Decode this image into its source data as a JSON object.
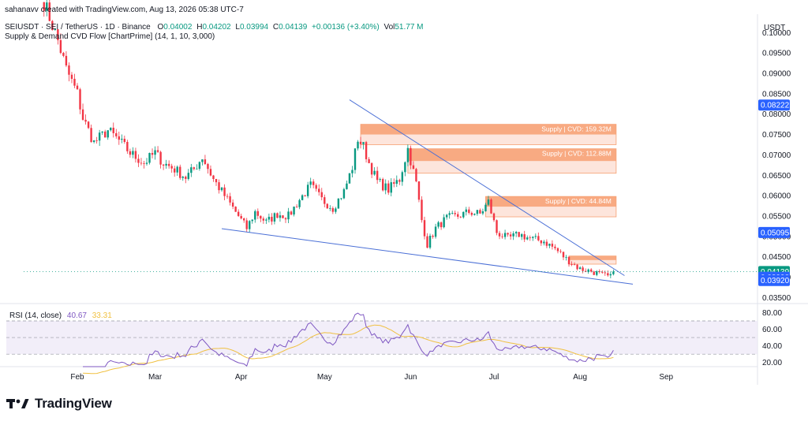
{
  "header": {
    "attribution": "sahanavv created with TradingView.com, Aug 13, 2026 05:38 UTC-7",
    "symbol_line": "SEIUSDT · SEI / TetherUS · 1D · Binance",
    "open_label": "O",
    "open": "0.04002",
    "high_label": "H",
    "high": "0.04202",
    "low_label": "L",
    "low": "0.03994",
    "close_label": "C",
    "close": "0.04139",
    "change": "+0.00136 (+3.40%)",
    "vol_label": "Vol",
    "vol": "51.77 M",
    "indicator": "Supply & Demand CVD Flow [ChartPrime] (14, 1, 10, 3,000)"
  },
  "colors": {
    "bull": "#089981",
    "bear": "#f23645",
    "zone": "#f7a072",
    "trendline": "#4a6fd6",
    "price_badge": "#2962ff",
    "rsi": "#7e57c2",
    "rsi_ma": "#f0c040"
  },
  "footer": {
    "brand": "TradingView"
  },
  "chart_data": [
    {
      "type": "candlestick",
      "title": "SEIUSDT · SEI / TetherUS · 1D · Binance",
      "currency": "USDT",
      "ylim": [
        0.0345,
        0.1045
      ],
      "y_ticks": [
        "0.10000",
        "0.09500",
        "0.09000",
        "0.08500",
        "0.08000",
        "0.07500",
        "0.07000",
        "0.06500",
        "0.06000",
        "0.05500",
        "0.05000",
        "0.04500",
        "0.04000",
        "0.03500"
      ],
      "x_ticks": [
        "Feb",
        "Mar",
        "Apr",
        "May",
        "Jun",
        "Jul",
        "Aug",
        "Sep"
      ],
      "price_labels": [
        {
          "value": "0.08222",
          "color": "#2962ff"
        },
        {
          "value": "0.05095",
          "color": "#2962ff"
        },
        {
          "value": "0.04139",
          "color": "#089981"
        },
        {
          "value": "0.03998",
          "color": "#2962ff"
        },
        {
          "value": "0.03920",
          "color": "#2962ff"
        }
      ],
      "anchors": [
        [
          "Jan 20",
          0.1075
        ],
        [
          "Jan 25",
          0.098
        ],
        [
          "Jan 28",
          0.091
        ],
        [
          "Feb 1",
          0.085
        ],
        [
          "Feb 3",
          0.079
        ],
        [
          "Feb 7",
          0.073
        ],
        [
          "Feb 12",
          0.076
        ],
        [
          "Feb 16",
          0.0735
        ],
        [
          "Feb 20",
          0.0705
        ],
        [
          "Feb 25",
          0.068
        ],
        [
          "Mar 1",
          0.0705
        ],
        [
          "Mar 4",
          0.068
        ],
        [
          "Mar 8",
          0.0665
        ],
        [
          "Mar 12",
          0.0645
        ],
        [
          "Mar 15",
          0.0665
        ],
        [
          "Mar 18",
          0.0695
        ],
        [
          "Mar 22",
          0.064
        ],
        [
          "Mar 26",
          0.06
        ],
        [
          "Mar 29",
          0.057
        ],
        [
          "Apr 3",
          0.052
        ],
        [
          "Apr 6",
          0.056
        ],
        [
          "Apr 10",
          0.0535
        ],
        [
          "Apr 14",
          0.0555
        ],
        [
          "Apr 18",
          0.055
        ],
        [
          "Apr 22",
          0.059
        ],
        [
          "Apr 26",
          0.0625
        ],
        [
          "Apr 30",
          0.059
        ],
        [
          "May 4",
          0.057
        ],
        [
          "May 8",
          0.061
        ],
        [
          "May 11",
          0.067
        ],
        [
          "May 13",
          0.074
        ],
        [
          "May 15",
          0.072
        ],
        [
          "May 17",
          0.068
        ],
        [
          "May 20",
          0.0635
        ],
        [
          "May 24",
          0.0615
        ],
        [
          "May 28",
          0.064
        ],
        [
          "May 31",
          0.0715
        ],
        [
          "Jun 3",
          0.063
        ],
        [
          "Jun 5",
          0.054
        ],
        [
          "Jun 7",
          0.048
        ],
        [
          "Jun 10",
          0.052
        ],
        [
          "Jun 14",
          0.0545
        ],
        [
          "Jun 18",
          0.055
        ],
        [
          "Jun 22",
          0.056
        ],
        [
          "Jun 26",
          0.0555
        ],
        [
          "Jun 29",
          0.0585
        ],
        [
          "Jul 2",
          0.051
        ],
        [
          "Jul 6",
          0.0495
        ],
        [
          "Jul 10",
          0.0505
        ],
        [
          "Jul 14",
          0.0495
        ],
        [
          "Jul 19",
          0.0488
        ],
        [
          "Jul 23",
          0.047
        ],
        [
          "Jul 27",
          0.0445
        ],
        [
          "Aug 1",
          0.042
        ],
        [
          "Aug 5",
          0.0415
        ],
        [
          "Aug 9",
          0.0405
        ],
        [
          "Aug 12",
          0.04
        ],
        [
          "Aug 13",
          0.04139
        ]
      ],
      "supply_zones": [
        {
          "label": "Supply | CVD: 159.32M",
          "top": 0.0775,
          "bottom": 0.0725,
          "from": "May 14",
          "to": "Aug 14"
        },
        {
          "label": "Supply | CVD: 112.88M",
          "top": 0.0715,
          "bottom": 0.0655,
          "from": "May 31",
          "to": "Aug 14"
        },
        {
          "label": "Supply | CVD: 44.84M",
          "top": 0.0598,
          "bottom": 0.0548,
          "from": "Jun 28",
          "to": "Aug 14"
        },
        {
          "label": "",
          "top": 0.0452,
          "bottom": 0.0432,
          "from": "Jul 28",
          "to": "Aug 14"
        }
      ],
      "trendlines": [
        {
          "from": [
            "Mar 25",
            0.0519
          ],
          "to": [
            "Aug 20",
            0.0383
          ]
        },
        {
          "from": [
            "May 10",
            0.0835
          ],
          "to": [
            "Aug 17",
            0.0404
          ]
        }
      ]
    },
    {
      "type": "line",
      "title": "RSI (14, close)",
      "series": [
        {
          "name": "RSI (14, close)",
          "value": "40.67"
        },
        {
          "name": "",
          "value": "33.31"
        }
      ],
      "ylim": [
        15,
        88
      ],
      "y_ticks": [
        "80.00",
        "60.00",
        "40.00",
        "20.00"
      ],
      "bands": [
        70,
        50,
        30
      ]
    }
  ]
}
